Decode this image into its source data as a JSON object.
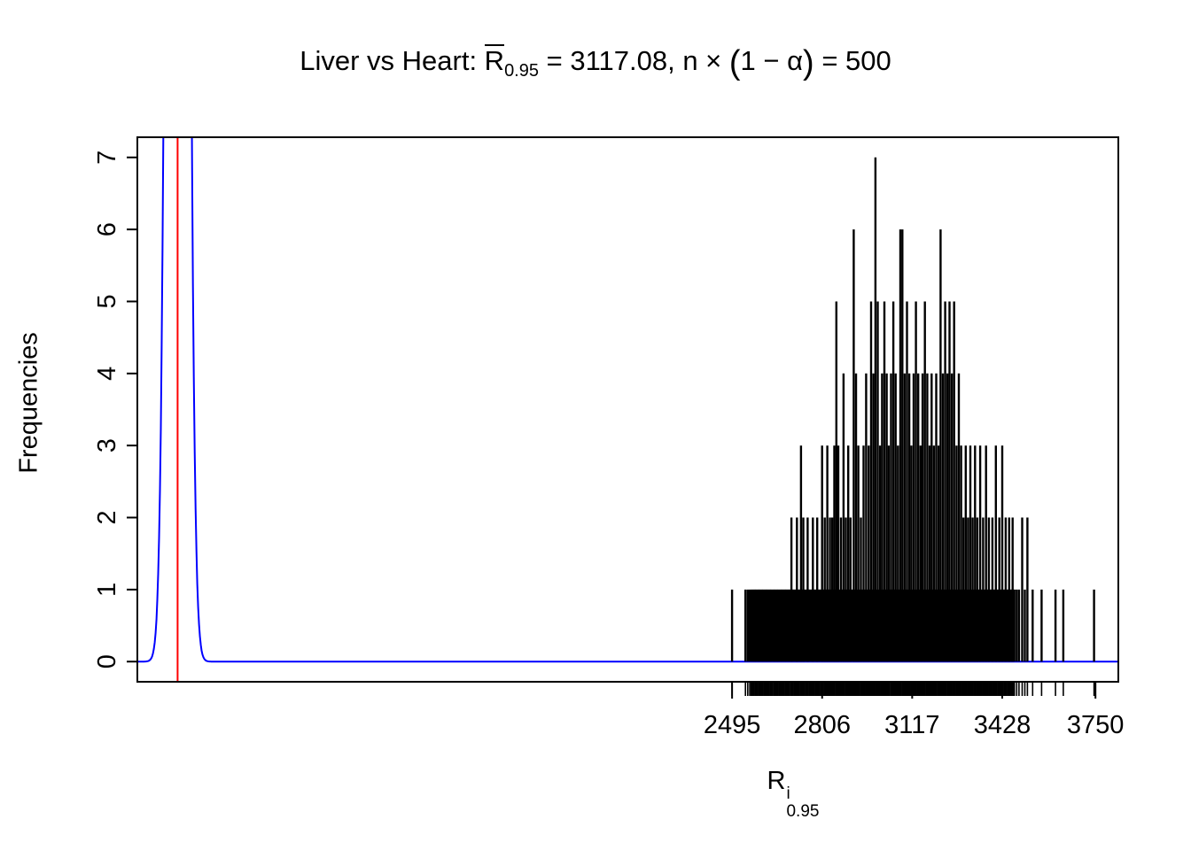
{
  "title": {
    "lead": "Liver vs Heart: ",
    "r_symbol": "R",
    "r_sub": "0.95",
    "stat_eq": " = 3117.08, ",
    "n_and_times": "n × ",
    "open_paren": "(",
    "paren_content": "1 − α",
    "close_paren": ")",
    "tail": " = 500"
  },
  "y_axis": {
    "label": "Frequencies"
  },
  "x_axis": {
    "base": "R",
    "sup": "i",
    "sub": "0.95"
  },
  "chart_data": {
    "type": "bar",
    "title": "Liver vs Heart: R̄_0.95 = 3117.08, n × (1 − α) = 500",
    "xlabel": "R^i_0.95",
    "ylabel": "Frequencies",
    "xlim": [
      441,
      3829
    ],
    "ylim": [
      -0.28,
      7.28
    ],
    "x_ticks": [
      2495,
      2806,
      3117,
      3428,
      3750
    ],
    "y_ticks": [
      0,
      1,
      2,
      3,
      4,
      5,
      6,
      7
    ],
    "grid": false,
    "legend": "none",
    "colors": {
      "spikes": "#000000",
      "density": "#0000ff",
      "vline": "#ff0000"
    },
    "red_vline_x": 580,
    "density_curve": {
      "center": 580,
      "sigma": 24,
      "peak": 60
    },
    "rug_fill": {
      "from": 2566,
      "to": 3470,
      "step": 4,
      "height": 1
    },
    "spikes": [
      [
        2495,
        1
      ],
      [
        2541,
        1
      ],
      [
        2549,
        1
      ],
      [
        2556,
        1
      ],
      [
        2561,
        1
      ],
      [
        2700,
        2
      ],
      [
        2719,
        2
      ],
      [
        2733,
        3
      ],
      [
        2741,
        2
      ],
      [
        2756,
        2
      ],
      [
        2774,
        2
      ],
      [
        2789,
        2
      ],
      [
        2806,
        3
      ],
      [
        2815,
        2
      ],
      [
        2824,
        3
      ],
      [
        2833,
        2
      ],
      [
        2841,
        2
      ],
      [
        2848,
        3
      ],
      [
        2855,
        5
      ],
      [
        2862,
        3
      ],
      [
        2871,
        2
      ],
      [
        2880,
        4
      ],
      [
        2888,
        2
      ],
      [
        2896,
        3
      ],
      [
        2904,
        2
      ],
      [
        2915,
        6
      ],
      [
        2923,
        4
      ],
      [
        2931,
        3
      ],
      [
        2940,
        2
      ],
      [
        2949,
        3
      ],
      [
        2958,
        4
      ],
      [
        2967,
        3
      ],
      [
        2975,
        5
      ],
      [
        2983,
        4
      ],
      [
        2990,
        7
      ],
      [
        2998,
        5
      ],
      [
        3006,
        3
      ],
      [
        3013,
        4
      ],
      [
        3021,
        5
      ],
      [
        3029,
        4
      ],
      [
        3036,
        3
      ],
      [
        3044,
        4
      ],
      [
        3052,
        5
      ],
      [
        3060,
        4
      ],
      [
        3068,
        3
      ],
      [
        3076,
        6
      ],
      [
        3083,
        6
      ],
      [
        3091,
        4
      ],
      [
        3099,
        5
      ],
      [
        3107,
        4
      ],
      [
        3114,
        3
      ],
      [
        3122,
        4
      ],
      [
        3130,
        5
      ],
      [
        3138,
        4
      ],
      [
        3146,
        3
      ],
      [
        3153,
        4
      ],
      [
        3161,
        5
      ],
      [
        3169,
        4
      ],
      [
        3177,
        3
      ],
      [
        3184,
        4
      ],
      [
        3192,
        3
      ],
      [
        3200,
        4
      ],
      [
        3208,
        3
      ],
      [
        3215,
        6
      ],
      [
        3223,
        4
      ],
      [
        3231,
        5
      ],
      [
        3239,
        4
      ],
      [
        3246,
        5
      ],
      [
        3254,
        4
      ],
      [
        3262,
        5
      ],
      [
        3270,
        3
      ],
      [
        3278,
        4
      ],
      [
        3286,
        3
      ],
      [
        3294,
        2
      ],
      [
        3302,
        3
      ],
      [
        3310,
        2
      ],
      [
        3318,
        3
      ],
      [
        3326,
        2
      ],
      [
        3334,
        3
      ],
      [
        3342,
        2
      ],
      [
        3352,
        3
      ],
      [
        3362,
        2
      ],
      [
        3372,
        3
      ],
      [
        3382,
        2
      ],
      [
        3394,
        2
      ],
      [
        3406,
        3
      ],
      [
        3418,
        2
      ],
      [
        3428,
        3
      ],
      [
        3440,
        2
      ],
      [
        3452,
        2
      ],
      [
        3464,
        2
      ],
      [
        3478,
        1
      ],
      [
        3486,
        1
      ],
      [
        3497,
        2
      ],
      [
        3506,
        1
      ],
      [
        3515,
        2
      ],
      [
        3533,
        1
      ],
      [
        3564,
        1
      ],
      [
        3612,
        1
      ],
      [
        3639,
        1
      ],
      [
        3745,
        1
      ]
    ]
  }
}
